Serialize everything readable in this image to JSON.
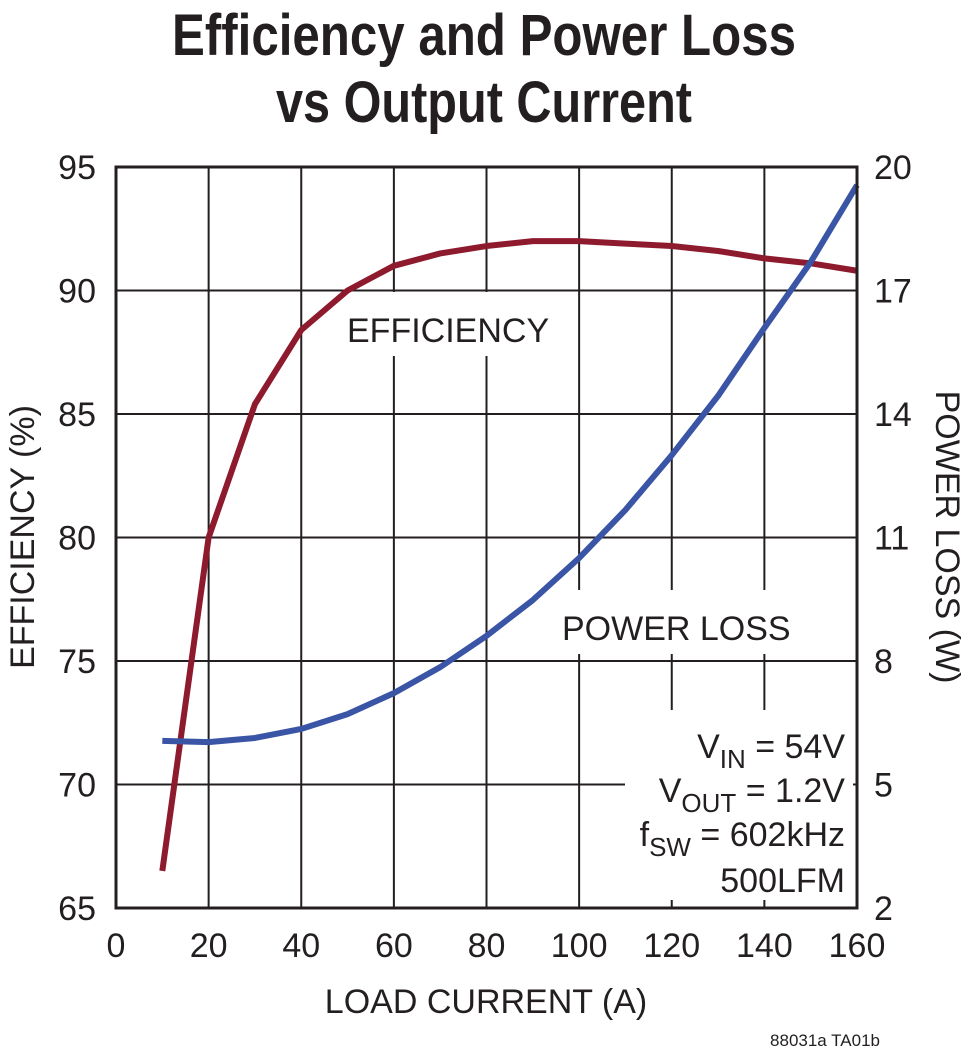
{
  "chart_data": {
    "type": "line",
    "title": [
      "Efficiency and Power Loss",
      "vs Output Current"
    ],
    "xlabel": "LOAD CURRENT (A)",
    "ylabel": "EFFICIENCY (%)",
    "y2label": "POWER LOSS (W)",
    "xlim": [
      0,
      160
    ],
    "ylim": [
      65,
      95
    ],
    "y2lim": [
      2,
      20
    ],
    "xticks": [
      0,
      20,
      40,
      60,
      80,
      100,
      120,
      140,
      160
    ],
    "yticks": [
      65,
      70,
      75,
      80,
      85,
      90,
      95
    ],
    "y2ticks": [
      2,
      5,
      8,
      11,
      14,
      17,
      20
    ],
    "grid": true,
    "x": [
      10,
      20,
      30,
      40,
      50,
      60,
      70,
      80,
      90,
      100,
      110,
      120,
      130,
      140,
      150,
      160
    ],
    "series": [
      {
        "name": "EFFICIENCY",
        "axis": "left",
        "color": "#8e1a2e",
        "values": [
          66.5,
          80.0,
          85.4,
          88.4,
          90.0,
          91.0,
          91.5,
          91.8,
          92.0,
          92.0,
          91.9,
          91.8,
          91.6,
          91.3,
          91.1,
          90.8
        ]
      },
      {
        "name": "POWER LOSS",
        "axis": "right",
        "color": "#3b55a6",
        "values": [
          6.06,
          6.03,
          6.13,
          6.35,
          6.71,
          7.22,
          7.85,
          8.61,
          9.48,
          10.5,
          11.67,
          13.0,
          14.44,
          16.09,
          17.69,
          19.56
        ]
      }
    ],
    "annotations": {
      "vin": {
        "main": "V",
        "sub": "IN",
        "rest": " = 54V"
      },
      "vout": {
        "main": "V",
        "sub": "OUT",
        "rest": " = 1.2V"
      },
      "fsw": {
        "main": "f",
        "sub": "SW",
        "rest": " = 602kHz"
      },
      "airflow": "500LFM"
    },
    "figure_id": "88031a TA01b"
  }
}
